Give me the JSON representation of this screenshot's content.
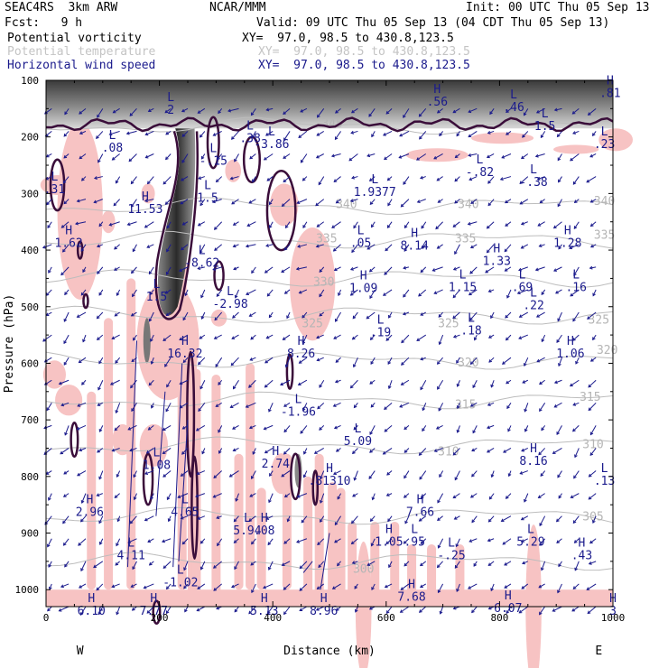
{
  "header": {
    "model": "SEAC4RS  3km ARW",
    "org": "NCAR/MMM",
    "init": "Init: 00 UTC Thu 05 Sep 13",
    "fcst": "Fcst:   9 h",
    "valid": "Valid: 09 UTC Thu 05 Sep 13 (04 CDT Thu 05 Sep 13)"
  },
  "legend": [
    {
      "name": "Potential vorticity",
      "xy": "XY=  97.0, 98.5 to 430.8,123.5",
      "color": "#000000"
    },
    {
      "name": "Potential temperature",
      "xy": "XY=  97.0, 98.5 to 430.8,123.5",
      "color": "#bbbbbb"
    },
    {
      "name": "Horizontal wind speed",
      "xy": "XY=  97.0, 98.5 to 430.8,123.5",
      "color": "#1a1a8c"
    }
  ],
  "chart_data": {
    "type": "cross-section",
    "xlabel": "Distance (km)",
    "ylabel": "Pressure (hPa)",
    "xlim": [
      0,
      1000
    ],
    "ylim": [
      1030,
      100
    ],
    "xticks": [
      0,
      200,
      400,
      600,
      800,
      1000
    ],
    "yticks": [
      100,
      200,
      300,
      400,
      500,
      600,
      700,
      800,
      900,
      1000
    ],
    "end_labels": {
      "left": "W",
      "right": "E"
    },
    "theta_contours": [
      {
        "value": "345",
        "p": 180
      },
      {
        "value": "340",
        "p": 322
      },
      {
        "value": "335",
        "p": 382
      },
      {
        "value": "330",
        "p": 450
      },
      {
        "value": "325",
        "p": 515
      },
      {
        "value": "320",
        "p": 595
      },
      {
        "value": "315",
        "p": 665
      },
      {
        "value": "310",
        "p": 745
      },
      {
        "value": "305",
        "p": 870
      },
      {
        "value": "300",
        "p": 950
      }
    ],
    "theta_labels": [
      {
        "text": "345",
        "x": 505,
        "p": 175
      },
      {
        "text": "340",
        "x": 530,
        "p": 318
      },
      {
        "text": "340",
        "x": 745,
        "p": 318
      },
      {
        "text": "340",
        "x": 985,
        "p": 312
      },
      {
        "text": "335",
        "x": 495,
        "p": 378
      },
      {
        "text": "335",
        "x": 740,
        "p": 378
      },
      {
        "text": "335",
        "x": 985,
        "p": 372
      },
      {
        "text": "330",
        "x": 490,
        "p": 455
      },
      {
        "text": "325",
        "x": 470,
        "p": 528
      },
      {
        "text": "325",
        "x": 710,
        "p": 528
      },
      {
        "text": "325",
        "x": 975,
        "p": 522
      },
      {
        "text": "320",
        "x": 745,
        "p": 598
      },
      {
        "text": "320",
        "x": 990,
        "p": 575
      },
      {
        "text": "315",
        "x": 740,
        "p": 672
      },
      {
        "text": "315",
        "x": 960,
        "p": 658
      },
      {
        "text": "310",
        "x": 710,
        "p": 755
      },
      {
        "text": "310",
        "x": 965,
        "p": 742
      },
      {
        "text": "305",
        "x": 965,
        "p": 870
      },
      {
        "text": "300",
        "x": 560,
        "p": 962
      }
    ],
    "extrema": [
      {
        "type": "L",
        "value": "2",
        "x": 220,
        "p": 145
      },
      {
        "type": "H",
        "value": ".56",
        "x": 690,
        "p": 130
      },
      {
        "type": "L",
        "value": ".46",
        "x": 825,
        "p": 140
      },
      {
        "type": "L",
        "value": "1.5",
        "x": 880,
        "p": 173
      },
      {
        "type": "H",
        "value": ".81",
        "x": 995,
        "p": 115
      },
      {
        "type": "L",
        "value": ".08",
        "x": 117,
        "p": 212
      },
      {
        "type": "L",
        "value": "-3.86",
        "x": 398,
        "p": 205
      },
      {
        "type": "L",
        "value": ".38",
        "x": 360,
        "p": 195
      },
      {
        "type": "L",
        "value": ".23",
        "x": 985,
        "p": 205
      },
      {
        "type": "L",
        "value": ".31",
        "x": 15,
        "p": 285
      },
      {
        "type": "L",
        "value": "-.82",
        "x": 765,
        "p": 255
      },
      {
        "type": "L",
        "value": "-.38",
        "x": 860,
        "p": 272
      },
      {
        "type": "L",
        "value": "-.15",
        "x": 295,
        "p": 235
      },
      {
        "type": "L",
        "value": "1.9377",
        "x": 580,
        "p": 290
      },
      {
        "type": "H",
        "value": "11.53",
        "x": 175,
        "p": 320
      },
      {
        "type": "L",
        "value": "1.5",
        "x": 285,
        "p": 300
      },
      {
        "type": "H",
        "value": "1.62",
        "x": 40,
        "p": 380
      },
      {
        "type": "L",
        "value": ".05",
        "x": 555,
        "p": 380
      },
      {
        "type": "H",
        "value": "8.14",
        "x": 650,
        "p": 385
      },
      {
        "type": "H",
        "value": "1.28",
        "x": 920,
        "p": 380
      },
      {
        "type": "H",
        "value": "1.33",
        "x": 795,
        "p": 412
      },
      {
        "type": "L",
        "value": "-8.62",
        "x": 275,
        "p": 415
      },
      {
        "type": "H",
        "value": "1.09",
        "x": 560,
        "p": 460
      },
      {
        "type": "L",
        "value": "1.15",
        "x": 735,
        "p": 458
      },
      {
        "type": "L",
        "value": ".69",
        "x": 840,
        "p": 458
      },
      {
        "type": "L",
        "value": ".16",
        "x": 935,
        "p": 458
      },
      {
        "type": "L",
        "value": ".22",
        "x": 860,
        "p": 490
      },
      {
        "type": "L",
        "value": "1.5",
        "x": 195,
        "p": 475
      },
      {
        "type": "L",
        "value": "-2.98",
        "x": 325,
        "p": 488
      },
      {
        "type": "L",
        "value": ".19",
        "x": 590,
        "p": 538
      },
      {
        "type": "L",
        "value": ".18",
        "x": 750,
        "p": 535
      },
      {
        "type": "H",
        "value": "16.32",
        "x": 245,
        "p": 575
      },
      {
        "type": "H",
        "value": "8.26",
        "x": 450,
        "p": 575
      },
      {
        "type": "H",
        "value": "1.06",
        "x": 925,
        "p": 575
      },
      {
        "type": "L",
        "value": "-1.96",
        "x": 445,
        "p": 678
      },
      {
        "type": "L",
        "value": "5.09",
        "x": 550,
        "p": 730
      },
      {
        "type": "L",
        "value": "1.08",
        "x": 195,
        "p": 772
      },
      {
        "type": "H",
        "value": "2.74",
        "x": 405,
        "p": 770
      },
      {
        "type": "H",
        "value": "8.16",
        "x": 860,
        "p": 765
      },
      {
        "type": "H",
        "value": ".81310",
        "x": 500,
        "p": 800
      },
      {
        "type": "L",
        "value": ".13",
        "x": 985,
        "p": 800
      },
      {
        "type": "L",
        "value": "4.65",
        "x": 245,
        "p": 855
      },
      {
        "type": "H",
        "value": "2.96",
        "x": 77,
        "p": 855
      },
      {
        "type": "H",
        "value": "7.66",
        "x": 660,
        "p": 855
      },
      {
        "type": "L",
        "value": "5.94",
        "x": 355,
        "p": 888
      },
      {
        "type": "H",
        "value": ".08",
        "x": 385,
        "p": 888
      },
      {
        "type": "H",
        "value": "1.05",
        "x": 605,
        "p": 908
      },
      {
        "type": "L",
        "value": ".95",
        "x": 650,
        "p": 908
      },
      {
        "type": "L",
        "value": "5.29",
        "x": 855,
        "p": 908
      },
      {
        "type": "L",
        "value": "4.11",
        "x": 150,
        "p": 932
      },
      {
        "type": "L",
        "value": "-.25",
        "x": 715,
        "p": 932
      },
      {
        "type": "H",
        "value": ".43",
        "x": 945,
        "p": 932
      },
      {
        "type": "L",
        "value": "-1.02",
        "x": 237,
        "p": 980
      },
      {
        "type": "H",
        "value": "7.68",
        "x": 645,
        "p": 1005
      },
      {
        "type": "H",
        "value": "6.10",
        "x": 80,
        "p": 1030
      },
      {
        "type": "H",
        "value": "7.77",
        "x": 190,
        "p": 1030
      },
      {
        "type": "H",
        "value": "5.13",
        "x": 385,
        "p": 1030
      },
      {
        "type": "H",
        "value": "8.96",
        "x": 490,
        "p": 1030
      },
      {
        "type": "H",
        "value": "6.07",
        "x": 815,
        "p": 1025
      },
      {
        "type": "H",
        "value": "3",
        "x": 1000,
        "p": 1030
      }
    ]
  }
}
